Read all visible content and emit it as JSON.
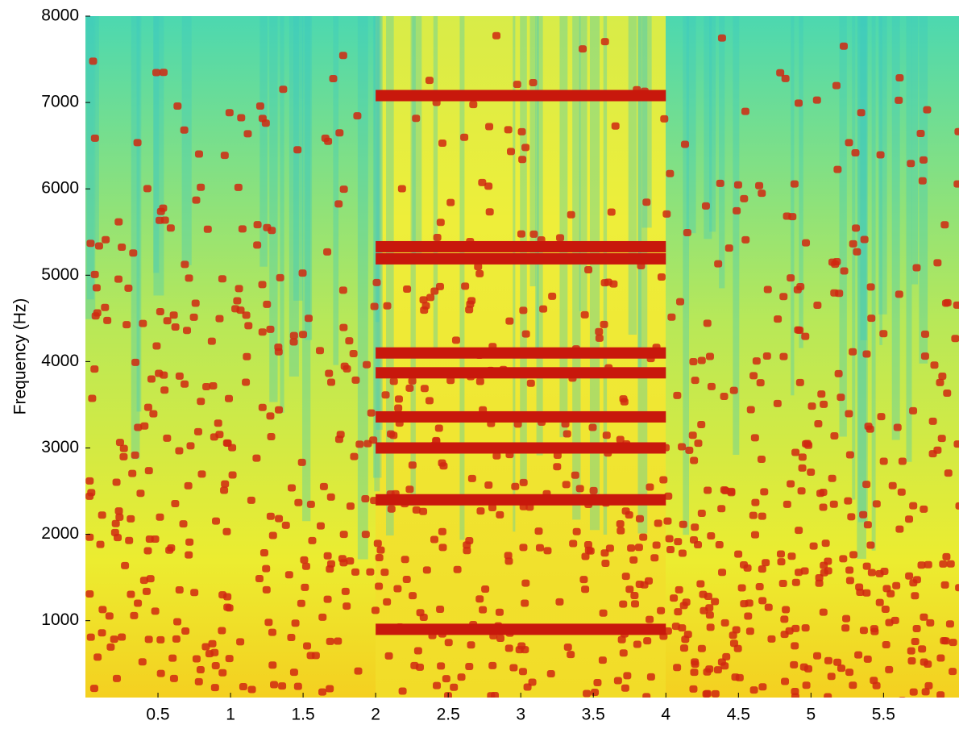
{
  "chart_data": {
    "type": "spectrogram",
    "ylabel": "Frequency (Hz)",
    "xlim": [
      0,
      6.02
    ],
    "ylim": [
      110,
      8000
    ],
    "xticks": [
      0.5,
      1,
      1.5,
      2,
      2.5,
      3,
      3.5,
      4,
      4.5,
      5,
      5.5
    ],
    "yticks": [
      1000,
      2000,
      3000,
      4000,
      5000,
      6000,
      7000,
      8000
    ],
    "tone_color": "#c8180c",
    "tones": [
      {
        "x": [
          2,
          4
        ],
        "value": 7080
      },
      {
        "x": [
          2,
          4
        ],
        "value": 5330
      },
      {
        "x": [
          2,
          4
        ],
        "value": 5190
      },
      {
        "x": [
          2,
          4
        ],
        "value": 4100
      },
      {
        "x": [
          2,
          4
        ],
        "value": 3870
      },
      {
        "x": [
          2,
          4
        ],
        "value": 3360
      },
      {
        "x": [
          2,
          4
        ],
        "value": 3000
      },
      {
        "x": [
          2,
          4
        ],
        "value": 2400
      },
      {
        "x": [
          2,
          4
        ],
        "value": 900
      }
    ]
  }
}
